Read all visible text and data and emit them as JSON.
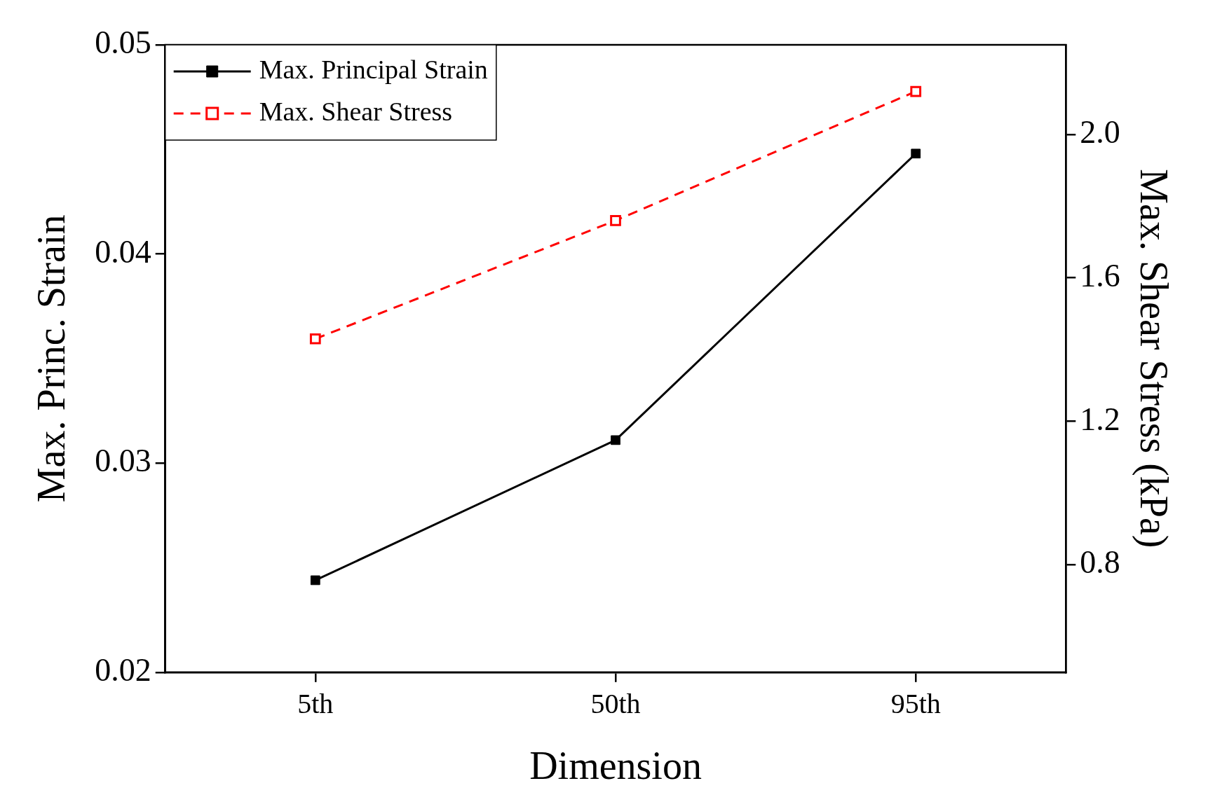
{
  "chart_data": {
    "type": "line",
    "xlabel": "Dimension",
    "ylabel": "Max. Princ. Strain",
    "y2label": "Max. Shear Stress (kPa)",
    "categories": [
      "5th",
      "50th",
      "95th"
    ],
    "series": [
      {
        "name": "Max. Principal Strain",
        "color": "#000000",
        "values": [
          0.0244,
          0.0311,
          0.0448
        ],
        "marker": "square",
        "line_style": "solid"
      },
      {
        "name": "Max. Shear Stress",
        "color": "#ff0000",
        "values": [
          1.43,
          1.76,
          2.12
        ],
        "axis": "y2",
        "marker": "square",
        "line_style": "dashed"
      }
    ],
    "ylim": [
      0.02,
      0.05
    ],
    "yticks": [
      0.02,
      0.03,
      0.04,
      0.05
    ],
    "y2lim": [
      0.5,
      2.25
    ],
    "y2ticks": [
      0.8,
      1.2,
      1.6,
      {
        "value": 2,
        "label": "2.0"
      }
    ],
    "grid": false,
    "legend": "top left"
  }
}
